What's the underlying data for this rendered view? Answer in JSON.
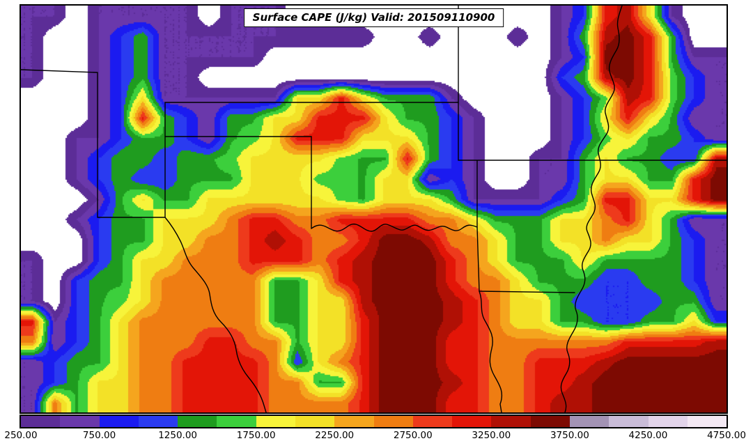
{
  "title": "Surface CAPE (J/kg) Valid: 201509110900",
  "chart_data": {
    "type": "heatmap",
    "title": "Surface CAPE (J/kg) Valid: 201509110900",
    "variable": "Surface CAPE",
    "units": "J/kg",
    "valid_time": "201509110900",
    "value_min": 250,
    "value_max": 4750,
    "band_step": 250,
    "below_min_color": "#ffffff",
    "band_colors": [
      "#5c2d97",
      "#6a38ab",
      "#1b1bf0",
      "#2a3bf0",
      "#1f9c1f",
      "#3ccf3c",
      "#f7f43a",
      "#f3e127",
      "#f5a51e",
      "#ef7d12",
      "#ee3a1c",
      "#e31507",
      "#b01005",
      "#7d0a02",
      "#a393b5",
      "#c9bcd8",
      "#e2d4ea",
      "#f4e9f4"
    ],
    "colorbar_tick_labels": [
      "250.00",
      "750.00",
      "1250.00",
      "1750.00",
      "2250.00",
      "2750.00",
      "3250.00",
      "3750.00",
      "4250.00",
      "4750.00"
    ],
    "colorbar_tick_values": [
      250,
      750,
      1250,
      1750,
      2250,
      2750,
      3250,
      3750,
      4250,
      4750
    ],
    "legend_position": "bottom",
    "grid": {
      "cols": 32,
      "rows": 20,
      "values": [
        [
          500,
          500,
          0,
          500,
          500,
          500,
          500,
          500,
          0,
          500,
          500,
          500,
          0,
          0,
          0,
          0,
          0,
          0,
          0,
          0,
          0,
          0,
          0,
          0,
          500,
          1000,
          3100,
          3400,
          2050,
          500,
          0,
          0
        ],
        [
          500,
          0,
          0,
          500,
          1000,
          1450,
          500,
          500,
          500,
          500,
          500,
          500,
          500,
          500,
          500,
          500,
          0,
          0,
          500,
          0,
          0,
          0,
          500,
          0,
          500,
          1450,
          3400,
          3650,
          3100,
          1450,
          0,
          0
        ],
        [
          500,
          0,
          0,
          500,
          1000,
          1450,
          500,
          500,
          500,
          500,
          500,
          0,
          0,
          0,
          0,
          0,
          0,
          0,
          0,
          0,
          0,
          0,
          0,
          0,
          500,
          1000,
          3650,
          3650,
          3100,
          1450,
          500,
          500
        ],
        [
          500,
          0,
          0,
          500,
          1000,
          1450,
          500,
          500,
          0,
          0,
          0,
          0,
          0,
          0,
          0,
          0,
          0,
          0,
          0,
          0,
          0,
          0,
          0,
          0,
          1000,
          1450,
          3400,
          3650,
          3100,
          1650,
          1000,
          500
        ],
        [
          0,
          0,
          0,
          500,
          1000,
          2050,
          500,
          500,
          500,
          500,
          500,
          500,
          2050,
          2050,
          3100,
          2050,
          1450,
          1450,
          1450,
          500,
          0,
          0,
          0,
          0,
          500,
          1000,
          1650,
          3400,
          3100,
          1650,
          1000,
          500
        ],
        [
          0,
          0,
          0,
          500,
          1000,
          3100,
          1450,
          1000,
          500,
          1450,
          1450,
          2050,
          2050,
          3100,
          3100,
          3100,
          2050,
          1450,
          1450,
          1000,
          500,
          0,
          0,
          0,
          500,
          1000,
          2050,
          3100,
          2050,
          1450,
          500,
          500
        ],
        [
          0,
          0,
          500,
          500,
          1000,
          1450,
          1450,
          1000,
          500,
          1450,
          1650,
          2050,
          3100,
          3100,
          3100,
          2050,
          2050,
          2050,
          1450,
          1000,
          500,
          0,
          0,
          0,
          500,
          1000,
          1650,
          2050,
          1450,
          1450,
          1000,
          500
        ],
        [
          0,
          0,
          500,
          1000,
          1450,
          1450,
          1000,
          1450,
          1450,
          1650,
          2050,
          2050,
          2050,
          2050,
          1650,
          1450,
          1450,
          3100,
          1450,
          1000,
          500,
          0,
          0,
          500,
          500,
          1450,
          2050,
          1450,
          1450,
          1000,
          1000,
          3400
        ],
        [
          0,
          0,
          500,
          1000,
          1450,
          1000,
          1000,
          1450,
          1450,
          1450,
          2050,
          2050,
          2050,
          1650,
          1650,
          1450,
          2050,
          2050,
          500,
          1000,
          500,
          0,
          0,
          500,
          500,
          1450,
          2050,
          2050,
          1450,
          1450,
          3100,
          3650
        ],
        [
          0,
          0,
          0,
          500,
          1450,
          2050,
          1450,
          1450,
          2050,
          2050,
          2050,
          2050,
          2050,
          2050,
          1650,
          1450,
          2050,
          2050,
          2050,
          1450,
          500,
          500,
          500,
          500,
          1000,
          1450,
          3100,
          3100,
          2050,
          2050,
          3100,
          3650
        ],
        [
          0,
          0,
          500,
          1000,
          1450,
          1450,
          2050,
          2050,
          2050,
          2600,
          3100,
          3100,
          2600,
          2600,
          3100,
          3100,
          3100,
          3100,
          2600,
          2600,
          2050,
          1450,
          1450,
          1450,
          2050,
          2050,
          2600,
          3100,
          2050,
          1450,
          500,
          500
        ],
        [
          0,
          0,
          0,
          1000,
          1450,
          1450,
          2050,
          2050,
          2600,
          2600,
          3100,
          3400,
          3100,
          2600,
          2600,
          3100,
          3650,
          3650,
          3400,
          2600,
          2600,
          2050,
          1450,
          1450,
          2050,
          2050,
          2600,
          2050,
          2050,
          1450,
          1000,
          500
        ],
        [
          500,
          0,
          0,
          1000,
          1450,
          2050,
          2050,
          2600,
          2600,
          2600,
          3100,
          3100,
          3100,
          2600,
          3100,
          3400,
          3650,
          3650,
          3650,
          3100,
          2600,
          2050,
          1450,
          1450,
          1450,
          2050,
          1450,
          1450,
          1450,
          1450,
          1000,
          500
        ],
        [
          500,
          0,
          1000,
          1450,
          1450,
          2050,
          2600,
          2600,
          2600,
          2600,
          2600,
          1450,
          1450,
          2050,
          3100,
          3400,
          3650,
          3650,
          3650,
          3100,
          2600,
          2600,
          2050,
          1450,
          1450,
          1450,
          1000,
          1000,
          1450,
          1450,
          1000,
          500
        ],
        [
          500,
          0,
          1000,
          1450,
          1650,
          2050,
          2600,
          2600,
          2600,
          2600,
          2600,
          1450,
          1450,
          2050,
          2050,
          3400,
          3650,
          3650,
          3650,
          3400,
          3100,
          2600,
          2050,
          2050,
          1450,
          1000,
          1000,
          1000,
          1000,
          1450,
          1450,
          500
        ],
        [
          3100,
          500,
          1000,
          1450,
          2050,
          2600,
          2600,
          2600,
          2600,
          2600,
          2600,
          1450,
          1450,
          2050,
          2050,
          3100,
          3650,
          3650,
          3650,
          3400,
          3100,
          2600,
          2050,
          2050,
          1450,
          1450,
          1000,
          1000,
          1450,
          1450,
          2050,
          1000
        ],
        [
          2600,
          500,
          1000,
          1450,
          2050,
          2600,
          2600,
          2600,
          3100,
          3100,
          2600,
          2600,
          1450,
          2050,
          2050,
          3100,
          3650,
          3650,
          3650,
          3100,
          3100,
          2600,
          2600,
          2600,
          2600,
          2600,
          2600,
          3100,
          3100,
          3100,
          3100,
          3400
        ],
        [
          500,
          1000,
          1450,
          1450,
          2050,
          2600,
          2600,
          3100,
          3100,
          3100,
          3100,
          2600,
          1000,
          2050,
          2600,
          3100,
          3650,
          3650,
          3650,
          3100,
          3100,
          2600,
          2600,
          3100,
          3100,
          3100,
          3400,
          3650,
          3650,
          3650,
          3650,
          3650
        ],
        [
          500,
          1000,
          1450,
          2050,
          2050,
          2600,
          2600,
          3100,
          3100,
          3100,
          3100,
          2600,
          2600,
          1450,
          1450,
          3100,
          3650,
          3650,
          3650,
          3400,
          3100,
          2600,
          2600,
          3100,
          3100,
          3400,
          3650,
          3650,
          3650,
          3650,
          3650,
          3650
        ],
        [
          500,
          2600,
          1450,
          2050,
          2050,
          2600,
          2600,
          3100,
          3100,
          3100,
          3100,
          2600,
          2600,
          2600,
          2600,
          3100,
          3650,
          3650,
          3650,
          3100,
          3100,
          2600,
          2600,
          3100,
          3400,
          3400,
          3650,
          3650,
          3650,
          3650,
          3650,
          3650
        ]
      ]
    }
  }
}
